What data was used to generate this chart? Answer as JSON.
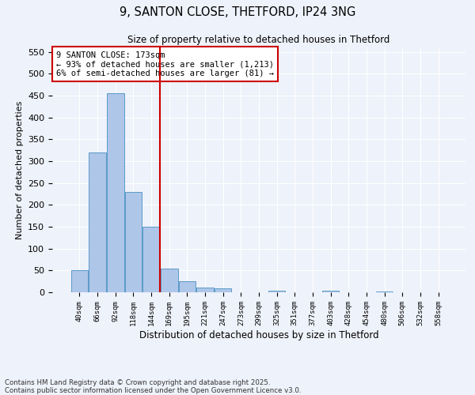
{
  "title": "9, SANTON CLOSE, THETFORD, IP24 3NG",
  "subtitle": "Size of property relative to detached houses in Thetford",
  "xlabel": "Distribution of detached houses by size in Thetford",
  "ylabel": "Number of detached properties",
  "categories": [
    "40sqm",
    "66sqm",
    "92sqm",
    "118sqm",
    "144sqm",
    "169sqm",
    "195sqm",
    "221sqm",
    "247sqm",
    "273sqm",
    "299sqm",
    "325sqm",
    "351sqm",
    "377sqm",
    "403sqm",
    "428sqm",
    "454sqm",
    "480sqm",
    "506sqm",
    "532sqm",
    "558sqm"
  ],
  "values": [
    50,
    320,
    455,
    230,
    150,
    55,
    25,
    10,
    9,
    0,
    0,
    4,
    0,
    0,
    4,
    0,
    0,
    2,
    0,
    0,
    0
  ],
  "bar_color": "#aec6e8",
  "bar_edge_color": "#5a9ac8",
  "vline_index": 5,
  "vline_color": "#cc0000",
  "annotation_line1": "9 SANTON CLOSE: 173sqm",
  "annotation_line2": "← 93% of detached houses are smaller (1,213)",
  "annotation_line3": "6% of semi-detached houses are larger (81) →",
  "annotation_box_color": "#cc0000",
  "ylim": [
    0,
    560
  ],
  "yticks": [
    0,
    50,
    100,
    150,
    200,
    250,
    300,
    350,
    400,
    450,
    500,
    550
  ],
  "bg_color": "#eef2fa",
  "grid_color": "#ffffff",
  "footer": "Contains HM Land Registry data © Crown copyright and database right 2025.\nContains public sector information licensed under the Open Government Licence v3.0."
}
